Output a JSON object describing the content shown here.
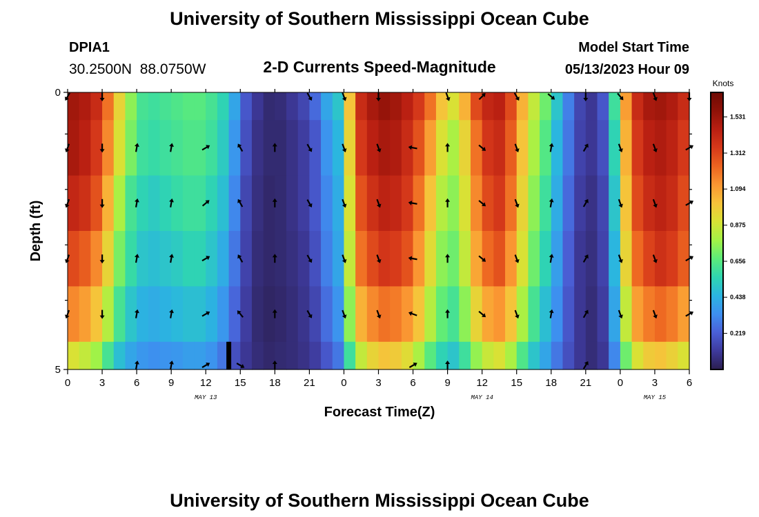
{
  "page": {
    "title": "University of Southern Mississippi Ocean Cube",
    "station_id": "DPIA1",
    "station_coords": "30.2500N  88.0750W",
    "subtitle": "2-D Currents Speed-Magnitude",
    "model_label": "Model Start Time",
    "model_time": "05/13/2023 Hour 09",
    "footer_title": "University of Southern Mississippi Ocean Cube"
  },
  "chart_data": {
    "type": "heatmap",
    "title": "2-D Currents Speed-Magnitude",
    "xlabel": "Forecast Time(Z)",
    "ylabel": "Depth (ft)",
    "xlim": [
      0,
      54
    ],
    "ylim": [
      0,
      5
    ],
    "x_ticks": [
      0,
      3,
      6,
      9,
      12,
      15,
      18,
      21,
      24,
      27,
      30,
      33,
      36,
      39,
      42,
      45,
      48,
      51,
      54
    ],
    "x_tick_labels": [
      "0",
      "3",
      "6",
      "9",
      "12",
      "15",
      "18",
      "21",
      "0",
      "3",
      "6",
      "9",
      "12",
      "15",
      "18",
      "21",
      "0",
      "3",
      "6"
    ],
    "y_tick_labels": [
      "0",
      "5"
    ],
    "y_labeled_ticks": [
      0,
      5
    ],
    "y_minor_ticks": [
      1,
      2,
      3,
      4
    ],
    "date_labels": [
      {
        "x": 12,
        "text": "MAY 13"
      },
      {
        "x": 36,
        "text": "MAY 14"
      },
      {
        "x": 51,
        "text": "MAY 15"
      }
    ],
    "colorbar": {
      "label": "Knots",
      "min": 0.0,
      "max": 1.68,
      "ticks": [
        "0.219",
        "0.438",
        "0.656",
        "0.875",
        "1.094",
        "1.312",
        "1.531"
      ],
      "colors": [
        "#2b1e4f",
        "#3e3a9c",
        "#4a5fd6",
        "#3e8ff0",
        "#2bb5e0",
        "#2fd6b0",
        "#5ceb7a",
        "#a3f246",
        "#d8e235",
        "#f7c23a",
        "#fa9632",
        "#ec6420",
        "#d6391a",
        "#b81f12",
        "#8f1208",
        "#6e0a04"
      ]
    },
    "depth_rows": [
      {
        "depth": "0-0.5",
        "values": [
          1.52,
          1.48,
          1.4,
          1.2,
          0.95,
          0.75,
          0.62,
          0.6,
          0.62,
          0.64,
          0.66,
          0.66,
          0.62,
          0.55,
          0.4,
          0.2,
          0.1,
          0.05,
          0.06,
          0.1,
          0.15,
          0.25,
          0.4,
          0.5,
          1.0,
          1.4,
          1.5,
          1.55,
          1.52,
          1.45,
          1.35,
          1.2,
          1.0,
          0.9,
          1.05,
          1.3,
          1.42,
          1.45,
          1.3,
          1.05,
          0.85,
          0.7,
          0.5,
          0.3,
          0.15,
          0.1,
          0.2,
          0.6,
          1.1,
          1.4,
          1.5,
          1.52,
          1.48,
          1.4
        ]
      },
      {
        "depth": "0.5-1.5",
        "values": [
          1.5,
          1.45,
          1.35,
          1.15,
          0.9,
          0.72,
          0.6,
          0.58,
          0.6,
          0.62,
          0.64,
          0.64,
          0.6,
          0.52,
          0.36,
          0.18,
          0.08,
          0.05,
          0.05,
          0.08,
          0.12,
          0.2,
          0.35,
          0.45,
          0.95,
          1.35,
          1.45,
          1.5,
          1.48,
          1.4,
          1.28,
          1.1,
          0.9,
          0.8,
          0.95,
          1.2,
          1.36,
          1.4,
          1.25,
          1.0,
          0.8,
          0.65,
          0.45,
          0.28,
          0.14,
          0.1,
          0.18,
          0.55,
          1.05,
          1.35,
          1.45,
          1.48,
          1.44,
          1.35
        ]
      },
      {
        "depth": "1.5-2.5",
        "values": [
          1.42,
          1.38,
          1.28,
          1.05,
          0.8,
          0.62,
          0.55,
          0.52,
          0.55,
          0.58,
          0.6,
          0.6,
          0.55,
          0.48,
          0.32,
          0.15,
          0.07,
          0.04,
          0.05,
          0.08,
          0.12,
          0.2,
          0.32,
          0.42,
          0.9,
          1.28,
          1.38,
          1.44,
          1.42,
          1.35,
          1.2,
          1.0,
          0.82,
          0.75,
          0.9,
          1.15,
          1.3,
          1.35,
          1.2,
          0.95,
          0.75,
          0.6,
          0.42,
          0.25,
          0.12,
          0.08,
          0.15,
          0.5,
          1.0,
          1.3,
          1.4,
          1.44,
          1.4,
          1.3
        ]
      },
      {
        "depth": "2.5-3.5",
        "values": [
          1.3,
          1.25,
          1.15,
          0.95,
          0.72,
          0.58,
          0.5,
          0.48,
          0.5,
          0.52,
          0.55,
          0.55,
          0.5,
          0.42,
          0.28,
          0.14,
          0.06,
          0.04,
          0.05,
          0.07,
          0.1,
          0.18,
          0.3,
          0.4,
          0.85,
          1.2,
          1.3,
          1.36,
          1.34,
          1.28,
          1.12,
          0.92,
          0.75,
          0.7,
          0.85,
          1.08,
          1.22,
          1.28,
          1.12,
          0.9,
          0.7,
          0.55,
          0.38,
          0.22,
          0.1,
          0.07,
          0.14,
          0.45,
          0.95,
          1.22,
          1.32,
          1.38,
          1.34,
          1.25
        ]
      },
      {
        "depth": "3.5-4.5",
        "values": [
          1.15,
          1.1,
          1.0,
          0.82,
          0.62,
          0.5,
          0.44,
          0.42,
          0.44,
          0.46,
          0.48,
          0.48,
          0.44,
          0.36,
          0.24,
          0.12,
          0.05,
          0.03,
          0.04,
          0.06,
          0.09,
          0.15,
          0.26,
          0.35,
          0.75,
          1.05,
          1.15,
          1.2,
          1.18,
          1.12,
          1.0,
          0.82,
          0.68,
          0.62,
          0.75,
          0.95,
          1.08,
          1.12,
          1.0,
          0.8,
          0.62,
          0.48,
          0.34,
          0.2,
          0.1,
          0.06,
          0.12,
          0.4,
          0.85,
          1.1,
          1.18,
          1.22,
          1.18,
          1.1
        ]
      },
      {
        "depth": "4.5-5",
        "values": [
          0.9,
          0.85,
          0.78,
          0.62,
          0.48,
          0.4,
          0.36,
          0.34,
          0.35,
          0.36,
          0.38,
          0.38,
          0.35,
          0.28,
          0.18,
          0.1,
          0.06,
          0.04,
          0.05,
          0.06,
          0.08,
          0.12,
          0.2,
          0.28,
          0.6,
          0.85,
          0.95,
          1.0,
          0.98,
          0.92,
          0.8,
          0.66,
          0.55,
          0.5,
          0.6,
          0.76,
          0.86,
          0.9,
          0.8,
          0.64,
          0.5,
          0.4,
          0.28,
          0.18,
          0.1,
          0.06,
          0.1,
          0.32,
          0.7,
          0.9,
          0.98,
          1.0,
          0.96,
          0.9
        ]
      }
    ],
    "arrow_rows": [
      {
        "depth": 0,
        "x": [
          0,
          3,
          21,
          24,
          27,
          33,
          36,
          39,
          42,
          45,
          48,
          51,
          54
        ],
        "angles": [
          210,
          180,
          150,
          160,
          180,
          160,
          45,
          150,
          130,
          180,
          140,
          160,
          180
        ]
      },
      {
        "depth": 1,
        "x": [
          0,
          3,
          6,
          9,
          12,
          15,
          18,
          21,
          24,
          27,
          30,
          33,
          36,
          39,
          42,
          45,
          48,
          51,
          54
        ],
        "angles": [
          200,
          180,
          10,
          10,
          60,
          330,
          0,
          150,
          160,
          160,
          280,
          0,
          130,
          160,
          10,
          30,
          160,
          160,
          60
        ]
      },
      {
        "depth": 2,
        "x": [
          0,
          3,
          6,
          9,
          12,
          15,
          18,
          21,
          24,
          27,
          30,
          33,
          36,
          39,
          42,
          45,
          48,
          51,
          54
        ],
        "angles": [
          200,
          180,
          10,
          10,
          50,
          330,
          0,
          150,
          160,
          160,
          280,
          0,
          130,
          160,
          10,
          30,
          160,
          160,
          60
        ]
      },
      {
        "depth": 3,
        "x": [
          0,
          3,
          6,
          9,
          12,
          15,
          18,
          21,
          24,
          27,
          30,
          33,
          36,
          39,
          42,
          45,
          48,
          51,
          54
        ],
        "angles": [
          200,
          180,
          10,
          10,
          60,
          330,
          0,
          150,
          160,
          160,
          280,
          0,
          130,
          160,
          10,
          30,
          160,
          160,
          60
        ]
      },
      {
        "depth": 4,
        "x": [
          0,
          3,
          6,
          9,
          12,
          15,
          18,
          21,
          24,
          27,
          30,
          33,
          36,
          39,
          42,
          45,
          48,
          51,
          54
        ],
        "angles": [
          200,
          180,
          10,
          10,
          60,
          320,
          0,
          150,
          160,
          160,
          290,
          0,
          130,
          160,
          10,
          30,
          160,
          160,
          60
        ]
      },
      {
        "depth": 5,
        "x": [
          6,
          9,
          12,
          15,
          18,
          30,
          33,
          45
        ],
        "angles": [
          10,
          10,
          60,
          120,
          0,
          60,
          0,
          30
        ]
      }
    ],
    "marker": {
      "x": 14,
      "depth_from": 4.5,
      "depth_to": 5
    }
  }
}
